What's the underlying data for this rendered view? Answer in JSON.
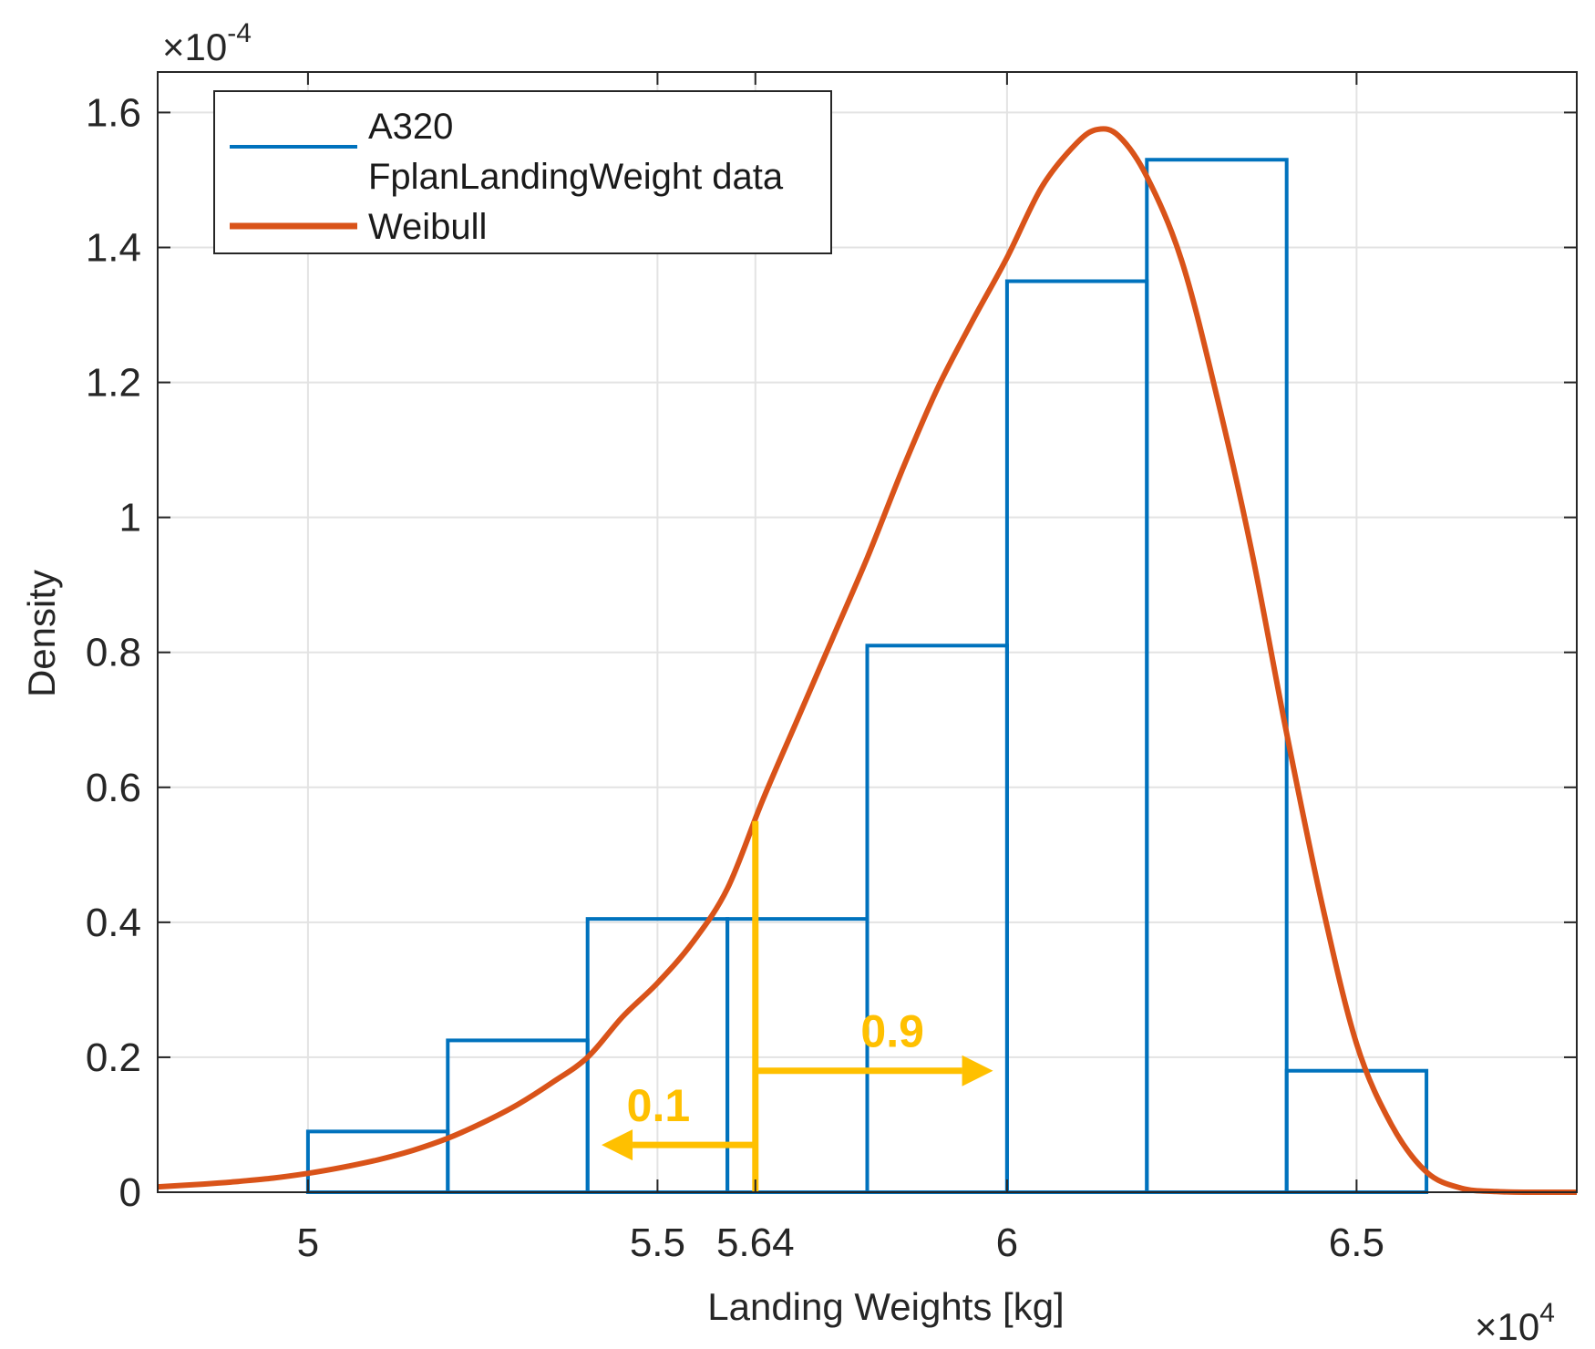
{
  "chart_data": {
    "type": "histogram",
    "xlabel": "Landing Weights [kg]",
    "ylabel": "Density",
    "x_multiplier": "×10",
    "x_multiplier_exp": "4",
    "y_multiplier": "×10",
    "y_multiplier_exp": "-4",
    "xlim": [
      4.785,
      6.815
    ],
    "ylim": [
      0,
      1.66
    ],
    "grid": true,
    "xticks": [
      {
        "value": 5,
        "label": "5"
      },
      {
        "value": 5.5,
        "label": "5.5"
      },
      {
        "value": 5.64,
        "label": "5.64"
      },
      {
        "value": 6,
        "label": "6"
      },
      {
        "value": 6.5,
        "label": "6.5"
      }
    ],
    "yticks": [
      {
        "value": 0,
        "label": "0"
      },
      {
        "value": 0.2,
        "label": "0.2"
      },
      {
        "value": 0.4,
        "label": "0.4"
      },
      {
        "value": 0.6,
        "label": "0.6"
      },
      {
        "value": 0.8,
        "label": "0.8"
      },
      {
        "value": 1.0,
        "label": "1"
      },
      {
        "value": 1.2,
        "label": "1.2"
      },
      {
        "value": 1.4,
        "label": "1.4"
      },
      {
        "value": 1.6,
        "label": "1.6"
      }
    ],
    "histogram": {
      "name": "A320 FplanLandingWeight data",
      "color": "#0072BD",
      "bin_edges": [
        5.0,
        5.2,
        5.4,
        5.6,
        5.8,
        6.0,
        6.2,
        6.4,
        6.6
      ],
      "values": [
        0.09,
        0.225,
        0.405,
        0.405,
        0.81,
        1.35,
        1.53,
        0.18
      ]
    },
    "fit": {
      "name": "Weibull",
      "color": "#D95319",
      "x": [
        4.785,
        4.85,
        4.9,
        4.95,
        5.0,
        5.05,
        5.1,
        5.15,
        5.2,
        5.25,
        5.3,
        5.35,
        5.4,
        5.45,
        5.5,
        5.55,
        5.6,
        5.65,
        5.7,
        5.75,
        5.8,
        5.85,
        5.9,
        5.95,
        6.0,
        6.05,
        6.1,
        6.13,
        6.16,
        6.2,
        6.25,
        6.3,
        6.35,
        6.4,
        6.45,
        6.5,
        6.55,
        6.6,
        6.65,
        6.7,
        6.75,
        6.815
      ],
      "y": [
        0.008,
        0.012,
        0.016,
        0.021,
        0.028,
        0.037,
        0.048,
        0.062,
        0.08,
        0.103,
        0.13,
        0.163,
        0.2,
        0.26,
        0.31,
        0.37,
        0.45,
        0.58,
        0.7,
        0.82,
        0.94,
        1.07,
        1.19,
        1.29,
        1.385,
        1.49,
        1.555,
        1.575,
        1.565,
        1.505,
        1.38,
        1.18,
        0.95,
        0.68,
        0.43,
        0.22,
        0.1,
        0.03,
        0.006,
        0.001,
        0.0,
        0.0
      ]
    },
    "legend": {
      "position": "top-left",
      "entries": [
        {
          "label_line1": "A320",
          "label_line2": "FplanLandingWeight data",
          "color": "#0072BD"
        },
        {
          "label_line1": "Weibull",
          "color": "#D95319"
        }
      ]
    },
    "annotations": {
      "color": "#FFC000",
      "threshold_x": 5.64,
      "threshold_top_y": 0.55,
      "left_label": "0.1",
      "left_arrow": {
        "from_x": 5.64,
        "to_x": 5.42,
        "y": 0.07
      },
      "right_label": "0.9",
      "right_arrow": {
        "from_x": 5.64,
        "to_x": 5.98,
        "y": 0.18
      }
    }
  }
}
